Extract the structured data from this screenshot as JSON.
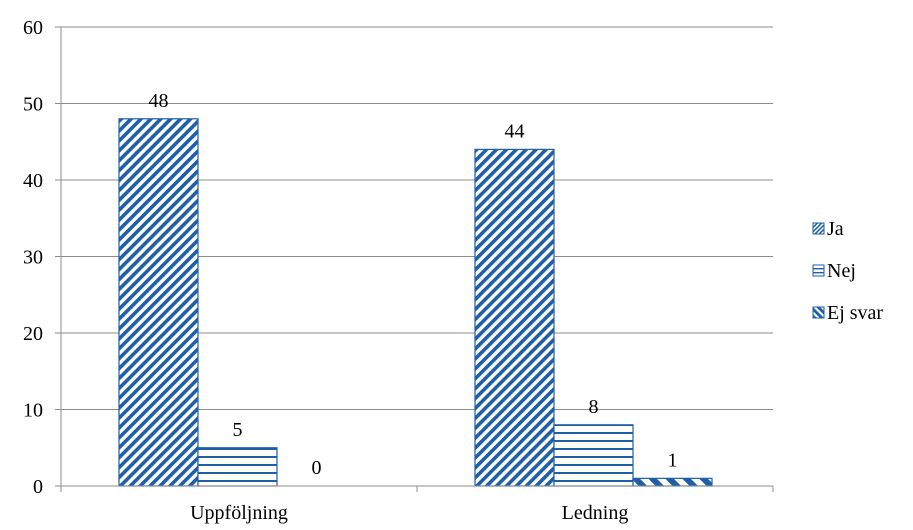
{
  "chart_data": {
    "type": "bar",
    "categories": [
      "Uppföljning",
      "Ledning"
    ],
    "series": [
      {
        "name": "Ja",
        "values": [
          48,
          44
        ],
        "pattern": "diagonal-down",
        "color": "#1f5fa8"
      },
      {
        "name": "Nej",
        "values": [
          5,
          8
        ],
        "pattern": "horizontal",
        "color": "#1f5fa8"
      },
      {
        "name": "Ej svar",
        "values": [
          0,
          1
        ],
        "pattern": "diagonal-up-wide",
        "color": "#1f5fa8"
      }
    ],
    "ylim": [
      0,
      60
    ],
    "yticks": [
      0,
      10,
      20,
      30,
      40,
      50,
      60
    ],
    "grid": true,
    "legend_position": "right",
    "data_labels": true
  }
}
